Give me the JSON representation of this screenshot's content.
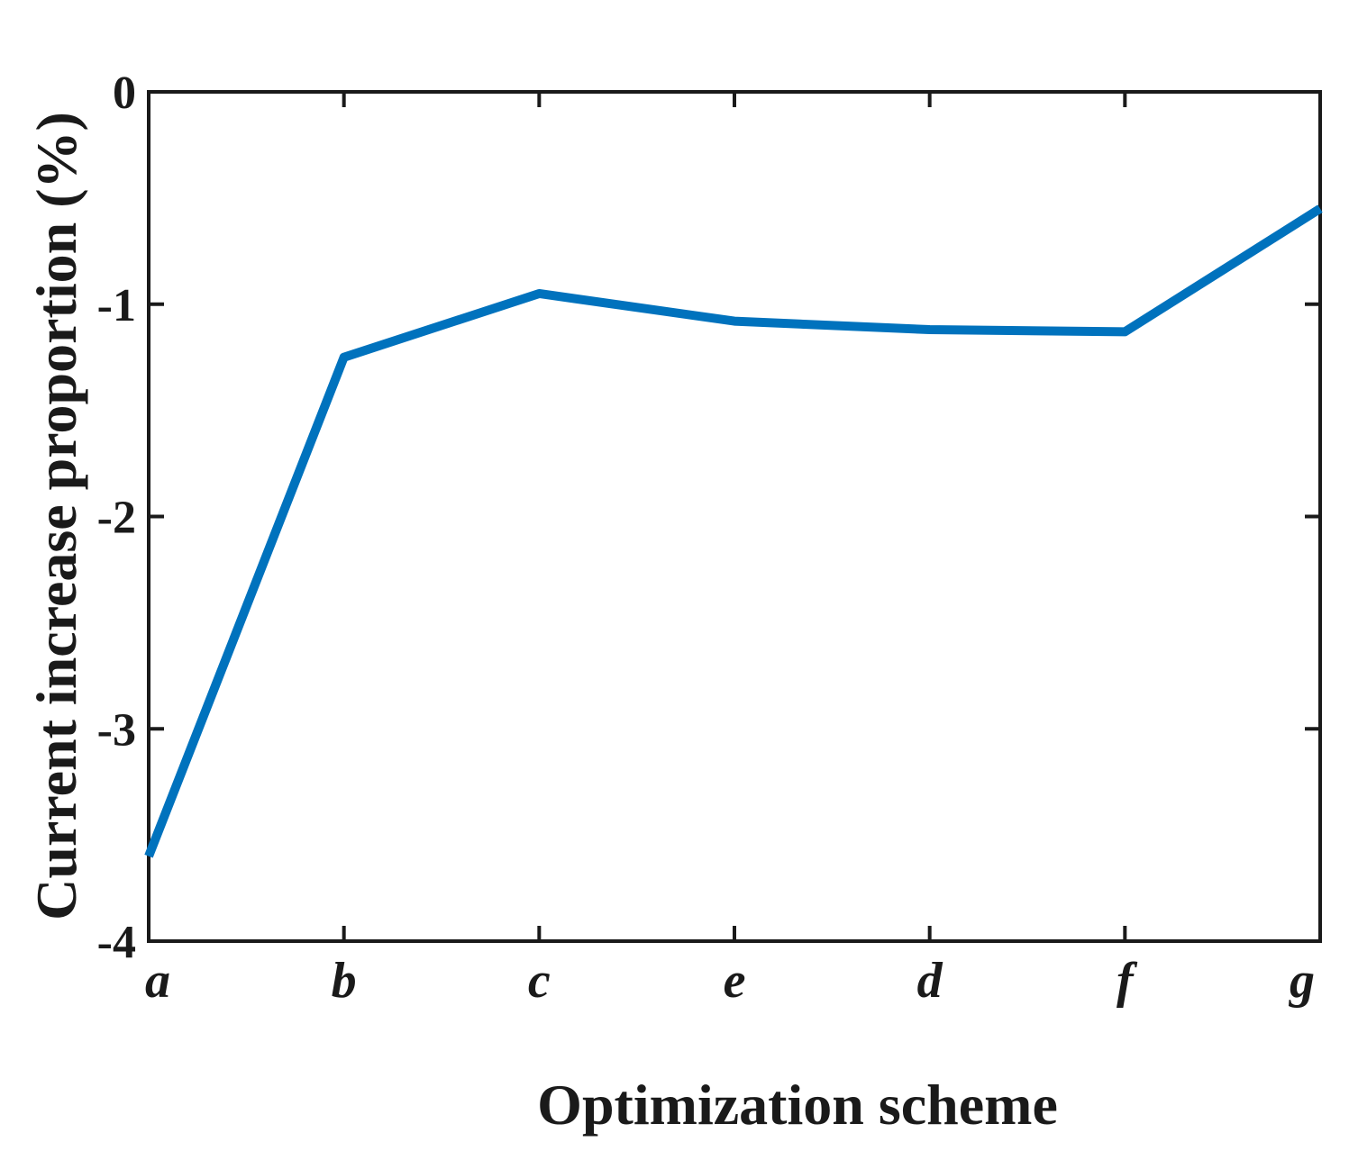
{
  "chart_data": {
    "type": "line",
    "title": "",
    "xlabel": "Optimization scheme",
    "ylabel": "Current increase proportion (%)",
    "categories": [
      "a",
      "b",
      "c",
      "e",
      "d",
      "f",
      "g"
    ],
    "series": [
      {
        "values": [
          -3.6,
          -1.25,
          -0.95,
          -1.08,
          -1.12,
          -1.13,
          -0.55
        ],
        "color": "#0072bd"
      }
    ],
    "ylim": [
      -4,
      0
    ],
    "yticks": [
      0,
      -1,
      -2,
      -3,
      -4
    ],
    "ytick_labels": [
      "0",
      "-1",
      "-2",
      "-3",
      "-4"
    ],
    "grid": false,
    "legend": "none",
    "axis_color": "#1a1a1a"
  }
}
